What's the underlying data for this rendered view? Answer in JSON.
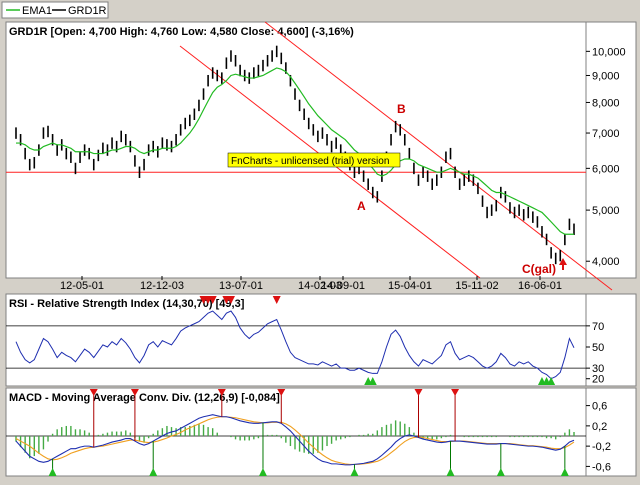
{
  "legend": {
    "items": [
      {
        "label": "EMA1",
        "color": "#22bb22"
      },
      {
        "label": "GRD1R",
        "color": "#000000"
      }
    ]
  },
  "watermark": "FnCharts - unlicensed (trial) version",
  "colors": {
    "price": "#000000",
    "ema": "#22bb22",
    "channel": "#ff2020",
    "rsi": "#1f2fb0",
    "macd": "#1f2fb0",
    "signal": "#f0a020",
    "hist": "#44aa44",
    "sell_marker": "#dd1111",
    "buy_marker": "#22bb22",
    "annotation": "#cc0000",
    "watermark_bg": "#ffff00"
  },
  "chart_data": [
    {
      "type": "line",
      "title": "GRD1R [Open: 4,700  High: 4,760  Low: 4,580  Close: 4,600] (-3,16%)",
      "x_tick_labels": [
        "12-05-01",
        "12-12-03",
        "13-07-01",
        "14-02-03",
        "14-09-01",
        "15-04-01",
        "15-11-02",
        "16-06-01"
      ],
      "y_scale": "log",
      "y_ticks": [
        4000,
        5000,
        6000,
        7000,
        8000,
        9000,
        10000
      ],
      "y_tick_labels": [
        "4,000",
        "5,000",
        "6,000",
        "7,000",
        "8,000",
        "9,000",
        "10,000"
      ],
      "ylim": [
        3750,
        10600
      ],
      "grid": false,
      "series": [
        {
          "name": "GRD1R",
          "values": [
            7000,
            6800,
            6400,
            6100,
            6150,
            6500,
            7000,
            7050,
            6800,
            6500,
            6650,
            6400,
            6300,
            6000,
            6300,
            6500,
            6400,
            6100,
            6350,
            6550,
            6500,
            6700,
            6600,
            6900,
            6800,
            6600,
            6200,
            5900,
            6100,
            6500,
            6600,
            6450,
            6700,
            6650,
            6600,
            6800,
            7100,
            7300,
            7400,
            7600,
            7900,
            8300,
            8800,
            9100,
            9000,
            8900,
            9500,
            9800,
            9600,
            9200,
            9000,
            8900,
            9100,
            9200,
            9400,
            9600,
            9800,
            10000,
            9700,
            9300,
            8800,
            8300,
            7900,
            7600,
            7300,
            7100,
            6900,
            7000,
            6800,
            6600,
            6700,
            6500,
            6300,
            6100,
            5900,
            6000,
            5800,
            5600,
            5400,
            5300,
            5800,
            6300,
            6800,
            7200,
            7100,
            6800,
            6400,
            6000,
            5700,
            5900,
            5800,
            5600,
            5700,
            5900,
            6300,
            6400,
            5900,
            5600,
            5700,
            5800,
            5700,
            5500,
            5200,
            4950,
            5000,
            5100,
            5400,
            5300,
            5050,
            4950,
            5000,
            4900,
            4950,
            4850,
            4750,
            4550,
            4400,
            4150,
            4050,
            4100,
            4400,
            4700,
            4600
          ]
        },
        {
          "name": "EMA1",
          "values": [
            6700,
            6700,
            6650,
            6550,
            6500,
            6500,
            6600,
            6650,
            6700,
            6650,
            6650,
            6600,
            6550,
            6450,
            6450,
            6450,
            6450,
            6400,
            6400,
            6400,
            6450,
            6500,
            6500,
            6550,
            6600,
            6600,
            6550,
            6450,
            6400,
            6450,
            6500,
            6500,
            6550,
            6550,
            6550,
            6600,
            6700,
            6850,
            7000,
            7200,
            7450,
            7750,
            8050,
            8350,
            8550,
            8650,
            8800,
            9000,
            9050,
            9000,
            8950,
            8900,
            8900,
            8950,
            9000,
            9100,
            9200,
            9300,
            9250,
            9150,
            8950,
            8700,
            8450,
            8200,
            7950,
            7750,
            7550,
            7400,
            7250,
            7100,
            7000,
            6900,
            6800,
            6650,
            6500,
            6400,
            6300,
            6150,
            6000,
            5850,
            5800,
            5850,
            5950,
            6100,
            6200,
            6250,
            6250,
            6200,
            6100,
            6050,
            6000,
            5950,
            5900,
            5900,
            5950,
            6000,
            5950,
            5900,
            5850,
            5850,
            5800,
            5750,
            5650,
            5550,
            5450,
            5400,
            5400,
            5350,
            5300,
            5250,
            5200,
            5150,
            5100,
            5050,
            5000,
            4950,
            4850,
            4750,
            4650,
            4550,
            4500,
            4500,
            4500
          ]
        }
      ],
      "annotations": [
        "A",
        "B",
        "C(gal)"
      ]
    },
    {
      "type": "line",
      "title": "RSI - Relative Strength Index (14,30,70) [49,3]",
      "y_ticks": [
        20,
        30,
        50,
        70
      ],
      "y_tick_labels": [
        "20",
        "30",
        "50",
        "70"
      ],
      "ylim": [
        15,
        85
      ],
      "reference_lines": [
        30,
        70
      ],
      "series": [
        {
          "name": "RSI",
          "values": [
            55,
            45,
            38,
            35,
            38,
            48,
            58,
            55,
            48,
            40,
            45,
            42,
            40,
            36,
            42,
            48,
            45,
            40,
            46,
            52,
            50,
            55,
            52,
            58,
            54,
            48,
            40,
            35,
            42,
            52,
            55,
            50,
            56,
            54,
            52,
            58,
            65,
            68,
            70,
            72,
            74,
            78,
            82,
            84,
            80,
            76,
            82,
            84,
            78,
            68,
            62,
            58,
            62,
            64,
            68,
            72,
            74,
            76,
            66,
            55,
            45,
            40,
            38,
            36,
            34,
            34,
            33,
            36,
            34,
            32,
            34,
            30,
            30,
            28,
            28,
            30,
            28,
            26,
            25,
            25,
            36,
            50,
            62,
            66,
            60,
            50,
            42,
            36,
            32,
            38,
            36,
            34,
            38,
            42,
            52,
            55,
            44,
            38,
            40,
            42,
            40,
            36,
            32,
            30,
            32,
            36,
            44,
            40,
            34,
            32,
            36,
            34,
            36,
            32,
            30,
            26,
            24,
            20,
            22,
            26,
            40,
            58,
            49.3
          ]
        }
      ]
    },
    {
      "type": "line",
      "title": "MACD - Moving Average Conv. Div. (12,26,9) [-0,084]",
      "y_ticks": [
        -0.6,
        -0.2,
        0.2,
        0.6
      ],
      "y_tick_labels": [
        "-0,6",
        "-0,2",
        "0,2",
        "0,6"
      ],
      "ylim": [
        -0.75,
        0.75
      ],
      "reference_lines": [
        0
      ],
      "series": [
        {
          "name": "MACD",
          "values": [
            -0.1,
            -0.2,
            -0.3,
            -0.4,
            -0.45,
            -0.5,
            -0.52,
            -0.5,
            -0.45,
            -0.4,
            -0.35,
            -0.3,
            -0.25,
            -0.25,
            -0.22,
            -0.2,
            -0.2,
            -0.22,
            -0.2,
            -0.18,
            -0.15,
            -0.12,
            -0.1,
            -0.08,
            -0.05,
            -0.05,
            -0.1,
            -0.15,
            -0.18,
            -0.15,
            -0.1,
            -0.05,
            0.0,
            0.05,
            0.08,
            0.1,
            0.15,
            0.2,
            0.25,
            0.3,
            0.35,
            0.38,
            0.4,
            0.42,
            0.4,
            0.38,
            0.38,
            0.36,
            0.33,
            0.3,
            0.28,
            0.26,
            0.25,
            0.25,
            0.26,
            0.27,
            0.28,
            0.28,
            0.25,
            0.18,
            0.1,
            0.0,
            -0.1,
            -0.2,
            -0.3,
            -0.38,
            -0.45,
            -0.5,
            -0.52,
            -0.55,
            -0.55,
            -0.56,
            -0.57,
            -0.57,
            -0.56,
            -0.55,
            -0.54,
            -0.52,
            -0.5,
            -0.45,
            -0.38,
            -0.3,
            -0.22,
            -0.12,
            -0.05,
            0.0,
            0.02,
            0.0,
            -0.03,
            -0.06,
            -0.08,
            -0.1,
            -0.12,
            -0.13,
            -0.12,
            -0.1,
            -0.1,
            -0.1,
            -0.11,
            -0.12,
            -0.13,
            -0.14,
            -0.15,
            -0.16,
            -0.16,
            -0.16,
            -0.15,
            -0.15,
            -0.16,
            -0.17,
            -0.18,
            -0.19,
            -0.2,
            -0.2,
            -0.21,
            -0.22,
            -0.24,
            -0.26,
            -0.28,
            -0.26,
            -0.2,
            -0.12,
            -0.084
          ]
        },
        {
          "name": "Signal",
          "values": [
            -0.05,
            -0.1,
            -0.15,
            -0.2,
            -0.27,
            -0.34,
            -0.4,
            -0.45,
            -0.47,
            -0.46,
            -0.43,
            -0.39,
            -0.34,
            -0.31,
            -0.28,
            -0.25,
            -0.23,
            -0.22,
            -0.21,
            -0.2,
            -0.18,
            -0.16,
            -0.14,
            -0.12,
            -0.1,
            -0.08,
            -0.08,
            -0.1,
            -0.12,
            -0.13,
            -0.12,
            -0.1,
            -0.07,
            -0.04,
            0.0,
            0.03,
            0.07,
            0.12,
            0.16,
            0.2,
            0.24,
            0.28,
            0.32,
            0.35,
            0.37,
            0.38,
            0.38,
            0.37,
            0.36,
            0.34,
            0.32,
            0.3,
            0.28,
            0.27,
            0.26,
            0.26,
            0.27,
            0.27,
            0.27,
            0.24,
            0.19,
            0.12,
            0.04,
            -0.05,
            -0.14,
            -0.22,
            -0.3,
            -0.37,
            -0.43,
            -0.48,
            -0.51,
            -0.53,
            -0.55,
            -0.56,
            -0.56,
            -0.56,
            -0.55,
            -0.54,
            -0.52,
            -0.5,
            -0.46,
            -0.4,
            -0.33,
            -0.26,
            -0.18,
            -0.11,
            -0.06,
            -0.03,
            -0.02,
            -0.03,
            -0.05,
            -0.07,
            -0.09,
            -0.11,
            -0.11,
            -0.11,
            -0.1,
            -0.1,
            -0.1,
            -0.11,
            -0.12,
            -0.13,
            -0.14,
            -0.15,
            -0.15,
            -0.15,
            -0.15,
            -0.15,
            -0.15,
            -0.16,
            -0.17,
            -0.18,
            -0.19,
            -0.19,
            -0.2,
            -0.21,
            -0.22,
            -0.24,
            -0.25,
            -0.25,
            -0.23,
            -0.18,
            -0.12
          ]
        }
      ]
    }
  ]
}
